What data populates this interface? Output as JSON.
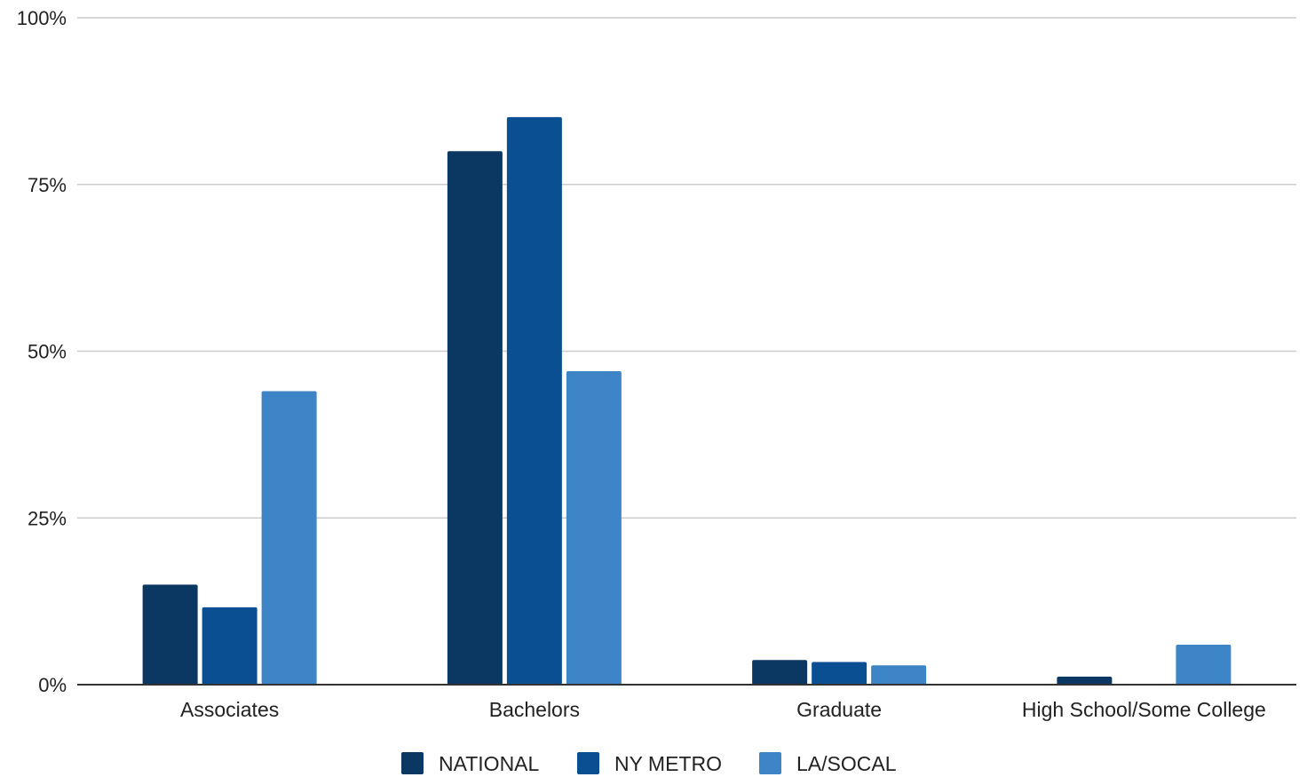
{
  "chart_data": {
    "type": "bar",
    "title": "",
    "xlabel": "",
    "ylabel": "",
    "categories": [
      "Associates",
      "Bachelors",
      "Graduate",
      "High School/Some College"
    ],
    "series": [
      {
        "name": "NATIONAL",
        "color": "#0b3763",
        "values": [
          15,
          80,
          3.7,
          1.2
        ]
      },
      {
        "name": "NY METRO",
        "color": "#0b4f93",
        "values": [
          11.6,
          85.1,
          3.4,
          0
        ]
      },
      {
        "name": "LA/SOCAL",
        "color": "#3d85c6",
        "values": [
          44,
          47,
          2.9,
          6
        ]
      }
    ],
    "ylim": [
      0,
      100
    ],
    "yticks": [
      {
        "value": 0,
        "label": "0%"
      },
      {
        "value": 25,
        "label": "25%"
      },
      {
        "value": 50,
        "label": "50%"
      },
      {
        "value": 75,
        "label": "75%"
      },
      {
        "value": 100,
        "label": "100%"
      }
    ],
    "grid": true,
    "legend_position": "bottom-center"
  }
}
